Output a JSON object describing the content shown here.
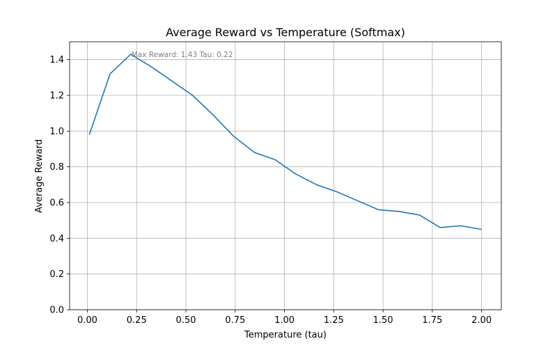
{
  "chart_data": {
    "type": "line",
    "title": "Average Reward vs Temperature (Softmax)",
    "xlabel": "Temperature (tau)",
    "ylabel": "Average Reward",
    "xlim": [
      -0.09,
      2.1
    ],
    "ylim": [
      0.0,
      1.5
    ],
    "xticks": [
      0.0,
      0.25,
      0.5,
      0.75,
      1.0,
      1.25,
      1.5,
      1.75,
      2.0
    ],
    "xtick_labels": [
      "0.00",
      "0.25",
      "0.50",
      "0.75",
      "1.00",
      "1.25",
      "1.50",
      "1.75",
      "2.00"
    ],
    "yticks": [
      0.0,
      0.2,
      0.4,
      0.6,
      0.8,
      1.0,
      1.2,
      1.4
    ],
    "ytick_labels": [
      "0.0",
      "0.2",
      "0.4",
      "0.6",
      "0.8",
      "1.0",
      "1.2",
      "1.4"
    ],
    "grid": true,
    "series": [
      {
        "color": "#1f77b4",
        "x": [
          0.01,
          0.115,
          0.22,
          0.324,
          0.429,
          0.534,
          0.638,
          0.743,
          0.848,
          0.952,
          1.057,
          1.162,
          1.266,
          1.371,
          1.476,
          1.58,
          1.685,
          1.79,
          1.894,
          1.999
        ],
        "y": [
          0.98,
          1.32,
          1.43,
          1.36,
          1.28,
          1.2,
          1.09,
          0.97,
          0.88,
          0.84,
          0.76,
          0.7,
          0.66,
          0.61,
          0.56,
          0.55,
          0.53,
          0.46,
          0.47,
          0.45
        ]
      }
    ],
    "annotations": [
      {
        "text": "Max Reward: 1.43 Tau: 0.22",
        "x": 0.22,
        "y": 1.43,
        "color": "#808080"
      }
    ]
  }
}
